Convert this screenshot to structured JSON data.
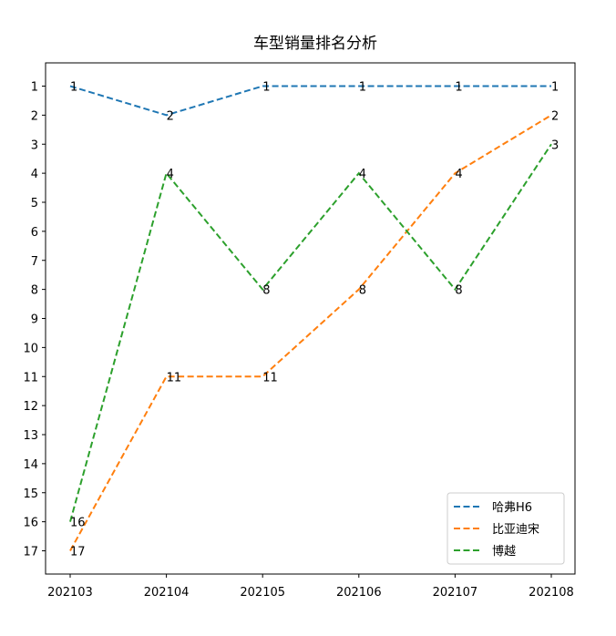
{
  "chart_data": {
    "type": "line",
    "title": "车型销量排名分析",
    "xlabel": "",
    "ylabel": "",
    "categories": [
      "202103",
      "202104",
      "202105",
      "202106",
      "202107",
      "202108"
    ],
    "yticks": [
      "1",
      "2",
      "3",
      "4",
      "5",
      "6",
      "7",
      "8",
      "9",
      "10",
      "11",
      "12",
      "13",
      "14",
      "15",
      "16",
      "17"
    ],
    "ylim": [
      17.8,
      0.2
    ],
    "y_inverted": true,
    "grid": false,
    "legend_position": "lower-right",
    "line_style": "dashed",
    "series": [
      {
        "name": "哈弗H6",
        "color": "#1f77b4",
        "values": [
          1,
          2,
          1,
          1,
          1,
          1
        ],
        "labels": [
          "1",
          "2",
          "1",
          "1",
          "1",
          "1"
        ]
      },
      {
        "name": "比亚迪宋",
        "color": "#ff7f0e",
        "values": [
          17,
          11,
          11,
          8,
          4,
          2
        ],
        "labels": [
          "17",
          "11",
          "11",
          "8",
          "4",
          "2"
        ]
      },
      {
        "name": "博越",
        "color": "#2ca02c",
        "values": [
          16,
          4,
          8,
          4,
          8,
          3
        ],
        "labels": [
          "16",
          "4",
          "8",
          "4",
          "8",
          "3"
        ]
      }
    ]
  }
}
